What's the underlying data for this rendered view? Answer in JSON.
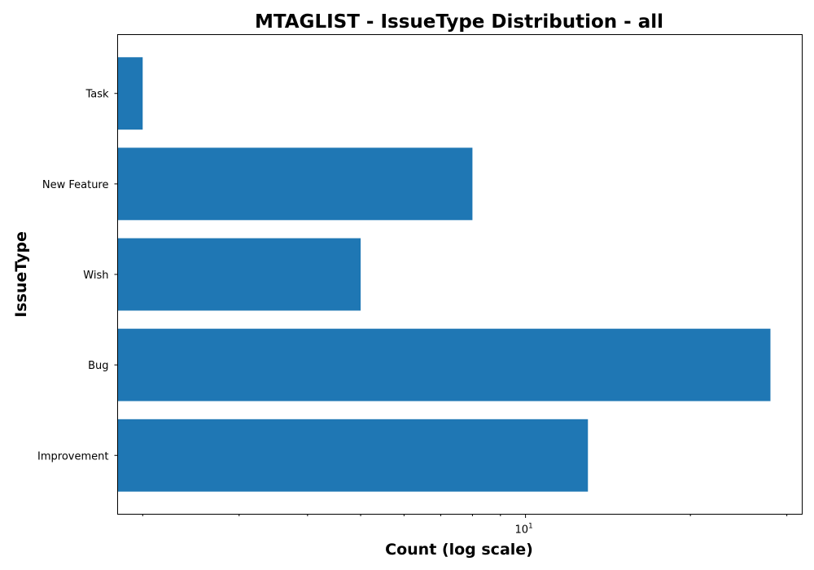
{
  "chart_data": {
    "type": "bar",
    "orientation": "horizontal",
    "title": "MTAGLIST - IssueType Distribution - all",
    "xlabel": "Count (log scale)",
    "ylabel": "IssueType",
    "x_scale": "log",
    "xlim": [
      1.8,
      32
    ],
    "categories": [
      "Task",
      "New Feature",
      "Wish",
      "Bug",
      "Improvement"
    ],
    "values": [
      2,
      8,
      5,
      28,
      13
    ],
    "color": "#1f77b4",
    "grid": false,
    "x_major_ticks": [
      {
        "value": 10,
        "base": "10",
        "exponent": "1"
      }
    ],
    "x_minor_ticks": [
      2,
      3,
      4,
      5,
      6,
      7,
      8,
      9,
      20,
      30
    ]
  }
}
